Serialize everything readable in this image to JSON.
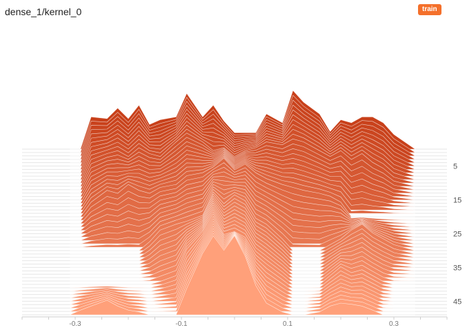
{
  "header": {
    "title": "dense_1/kernel_0",
    "run_badge": "train"
  },
  "colors": {
    "badge": "#f4702b",
    "series_first": "#c8401a",
    "series_last": "#ffa07a",
    "axis": "#cccccc"
  },
  "chart_data": {
    "type": "area",
    "mode": "offset",
    "xlim": [
      -0.4,
      0.4
    ],
    "x_ticks": [
      -0.3,
      -0.1,
      0.1,
      0.3
    ],
    "x_tick_labels": [
      "-0.3",
      "-0.1",
      "0.1",
      "0.3"
    ],
    "y_ticks": [
      5,
      15,
      25,
      35,
      45
    ],
    "y_tick_labels": [
      "5",
      "15",
      "25",
      "35",
      "45"
    ],
    "steps": 50,
    "x": [
      -0.31,
      -0.29,
      -0.27,
      -0.24,
      -0.22,
      -0.2,
      -0.18,
      -0.16,
      -0.14,
      -0.11,
      -0.09,
      -0.06,
      -0.04,
      -0.02,
      0.0,
      0.02,
      0.04,
      0.06,
      0.09,
      0.11,
      0.13,
      0.16,
      0.18,
      0.2,
      0.22,
      0.24,
      0.26,
      0.28,
      0.3,
      0.34
    ],
    "series": [
      {
        "step": 0,
        "values": [
          0.0,
          0.0,
          0.55,
          0.52,
          0.7,
          0.52,
          0.75,
          0.42,
          0.5,
          0.55,
          0.95,
          0.55,
          0.75,
          0.48,
          0.28,
          0.28,
          0.28,
          0.6,
          0.45,
          1.0,
          0.8,
          0.6,
          0.3,
          0.5,
          0.45,
          0.55,
          0.55,
          0.45,
          0.25,
          0.0
        ]
      },
      {
        "step": 10,
        "values": [
          0.0,
          0.0,
          0.4,
          0.5,
          0.55,
          0.45,
          0.6,
          0.5,
          0.45,
          0.7,
          0.85,
          0.7,
          0.55,
          0.6,
          0.45,
          0.55,
          0.6,
          0.7,
          0.65,
          0.75,
          0.7,
          0.55,
          0.45,
          0.55,
          0.4,
          0.5,
          0.35,
          0.25,
          0.1,
          0.0
        ]
      },
      {
        "step": 20,
        "values": [
          0.0,
          0.0,
          0.25,
          0.45,
          0.4,
          0.55,
          0.45,
          0.4,
          0.5,
          0.55,
          0.7,
          0.75,
          0.85,
          1.0,
          0.8,
          0.9,
          0.75,
          0.65,
          0.55,
          0.5,
          0.45,
          0.4,
          0.35,
          0.25,
          0.0,
          0.0,
          0.0,
          0.0,
          0.0,
          0.0
        ]
      },
      {
        "step": 30,
        "values": [
          0.0,
          0.0,
          0.0,
          0.0,
          0.0,
          0.0,
          0.0,
          0.15,
          0.35,
          0.45,
          0.5,
          0.6,
          1.0,
          0.8,
          0.95,
          0.85,
          0.55,
          0.45,
          0.2,
          0.0,
          0.0,
          0.0,
          0.1,
          0.2,
          0.35,
          0.45,
          0.3,
          0.2,
          0.1,
          0.0
        ]
      },
      {
        "step": 40,
        "values": [
          0.0,
          0.0,
          0.0,
          0.0,
          0.0,
          0.0,
          0.0,
          0.0,
          0.05,
          0.15,
          0.6,
          0.9,
          1.2,
          0.85,
          0.9,
          0.8,
          0.5,
          0.35,
          0.15,
          0.0,
          0.0,
          0.0,
          0.15,
          0.3,
          0.2,
          0.25,
          0.15,
          0.05,
          0.0,
          0.0
        ]
      },
      {
        "step": 49,
        "values": [
          0.0,
          0.08,
          0.15,
          0.25,
          0.15,
          0.08,
          0.05,
          0.0,
          0.0,
          0.0,
          0.45,
          1.05,
          1.35,
          1.1,
          1.35,
          1.0,
          0.5,
          0.2,
          0.05,
          0.0,
          0.0,
          0.05,
          0.15,
          0.2,
          0.18,
          0.15,
          0.08,
          0.0,
          0.0,
          0.0
        ]
      }
    ]
  }
}
